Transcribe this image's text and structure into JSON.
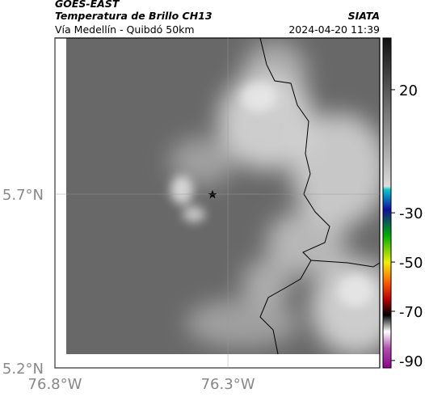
{
  "header": {
    "satellite": "GOES-EAST",
    "product": "Temperatura de Brillo CH13",
    "route": "Vía Medellín - Quibdó 50km",
    "source": "SIATA",
    "datetime": "2024-04-20 11:39"
  },
  "map": {
    "xlim": [
      -76.8,
      -75.861
    ],
    "ylim": [
      5.2,
      6.149
    ],
    "xticks": [
      {
        "value": -76.8,
        "label": "76.8°W"
      },
      {
        "value": -76.3,
        "label": "76.3°W"
      }
    ],
    "yticks": [
      {
        "value": 5.2,
        "label": "5.2°N"
      },
      {
        "value": 5.7,
        "label": "5.7°N"
      }
    ]
  },
  "colorbar": {
    "lim": [
      -93,
      41
    ],
    "ticks": [
      20,
      -30,
      -50,
      -70,
      -90
    ]
  }
}
